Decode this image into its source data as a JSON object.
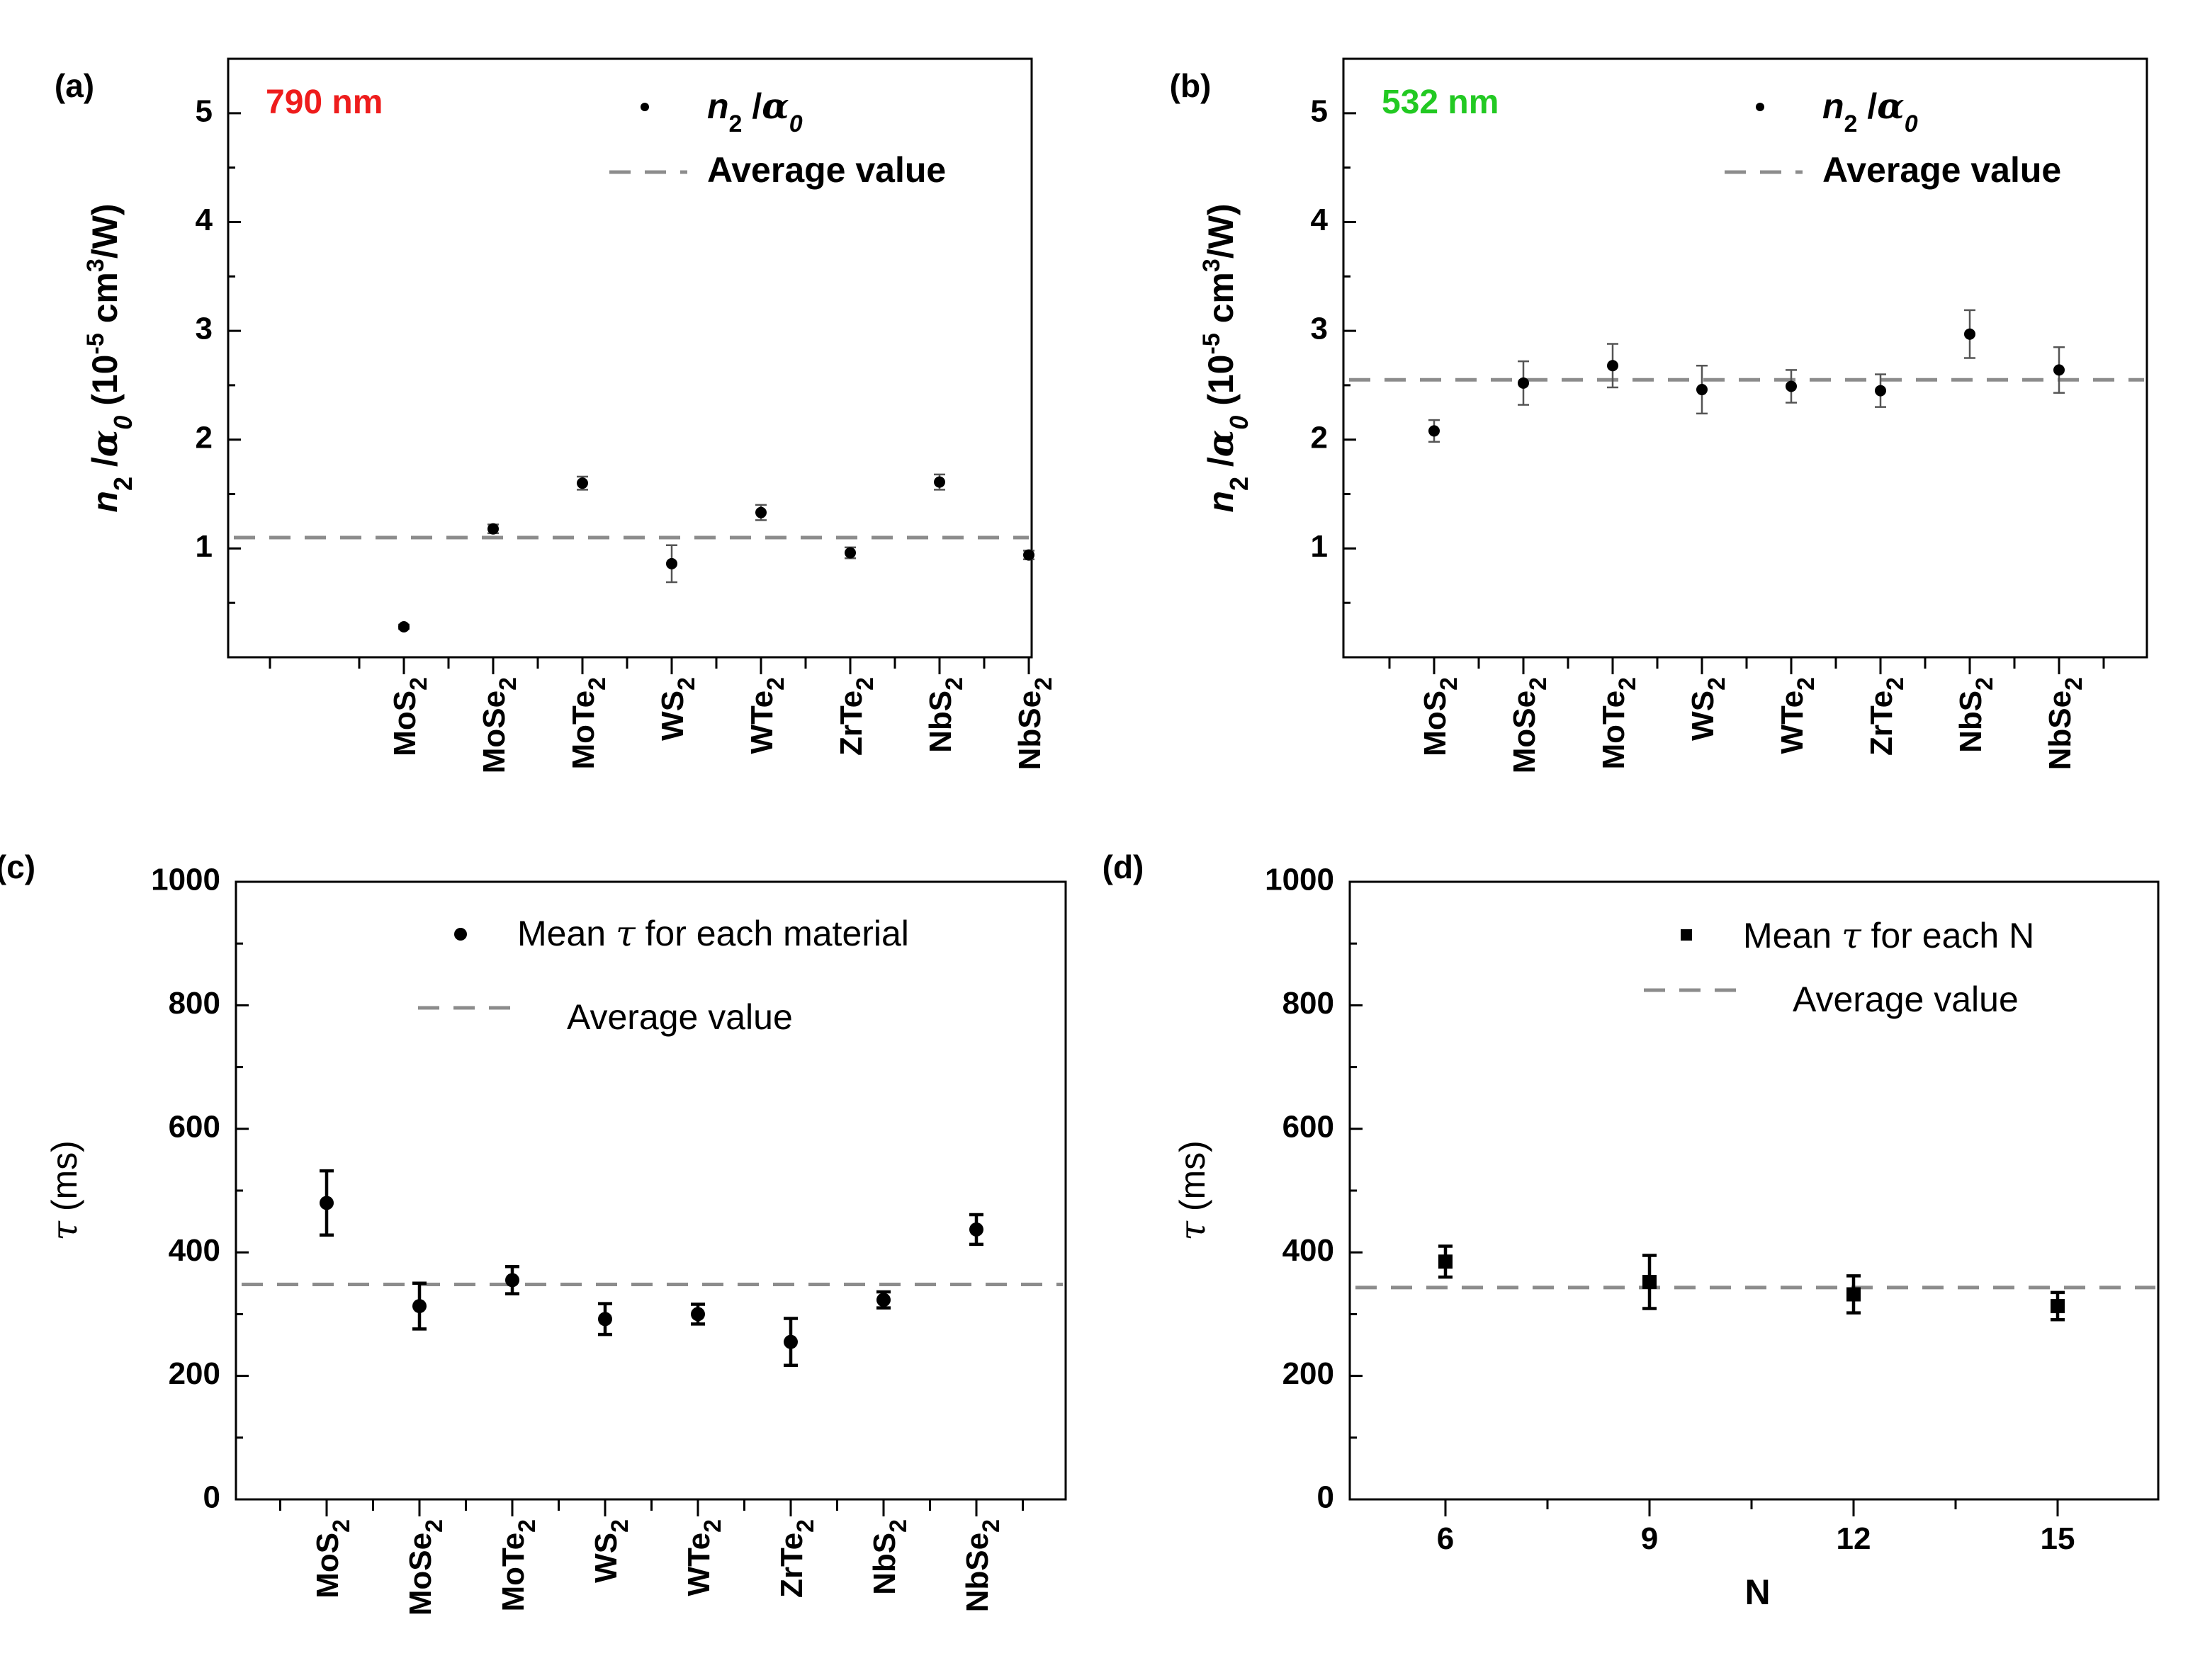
{
  "chart_data": [
    {
      "panel": "(a)",
      "type": "scatter",
      "annotation": "790 nm",
      "annotation_color": "#ee1c1c",
      "ylabel": "n2/α0 (10^-5 cm^3/W)",
      "xlabel": "",
      "ylim": [
        0,
        5.5
      ],
      "yticks": [
        1,
        2,
        3,
        4,
        5
      ],
      "categories": [
        "MoS2",
        "MoSe2",
        "MoTe2",
        "WS2",
        "WTe2",
        "ZrTe2",
        "NbS2",
        "NbSe2"
      ],
      "values": [
        0.28,
        1.18,
        1.6,
        0.86,
        1.33,
        0.96,
        1.61,
        0.94
      ],
      "errors": [
        0.02,
        0.04,
        0.06,
        0.17,
        0.07,
        0.05,
        0.07,
        0.04
      ],
      "average": 1.1,
      "legend": [
        "n2/α0",
        "Average value"
      ],
      "legend_position": "top-right"
    },
    {
      "panel": "(b)",
      "type": "scatter",
      "annotation": "532 nm",
      "annotation_color": "#22c922",
      "ylabel": "n2/α0 (10^-5 cm^3/W)",
      "xlabel": "",
      "ylim": [
        0,
        5.5
      ],
      "yticks": [
        1,
        2,
        3,
        4,
        5
      ],
      "categories": [
        "MoS2",
        "MoSe2",
        "MoTe2",
        "WS2",
        "WTe2",
        "ZrTe2",
        "NbS2",
        "NbSe2"
      ],
      "values": [
        2.08,
        2.52,
        2.68,
        2.46,
        2.49,
        2.45,
        2.97,
        2.64
      ],
      "errors": [
        0.1,
        0.2,
        0.2,
        0.22,
        0.15,
        0.15,
        0.22,
        0.21
      ],
      "average": 2.55,
      "legend": [
        "n2/α0",
        "Average value"
      ],
      "legend_position": "top-right"
    },
    {
      "panel": "(c)",
      "type": "scatter",
      "ylabel": "τ (ms)",
      "xlabel": "",
      "ylim": [
        0,
        1000
      ],
      "yticks": [
        0,
        200,
        400,
        600,
        800,
        1000
      ],
      "categories": [
        "MoS2",
        "MoSe2",
        "MoTe2",
        "WS2",
        "WTe2",
        "ZrTe2",
        "NbS2",
        "NbSe2"
      ],
      "values": [
        480,
        313,
        355,
        292,
        300,
        255,
        323,
        437
      ],
      "errors": [
        52,
        37,
        22,
        25,
        16,
        38,
        13,
        24
      ],
      "average": 348,
      "legend": [
        "Mean τ for each material",
        "Average value"
      ],
      "legend_position": "top-right"
    },
    {
      "panel": "(d)",
      "type": "scatter",
      "ylabel": "τ (ms)",
      "xlabel": "N",
      "ylim": [
        0,
        1000
      ],
      "yticks": [
        0,
        200,
        400,
        600,
        800,
        1000
      ],
      "xticks": [
        "6",
        "9",
        "12",
        "15"
      ],
      "x": [
        6,
        9,
        12,
        15
      ],
      "values": [
        385,
        352,
        332,
        313
      ],
      "errors": [
        25,
        43,
        30,
        22
      ],
      "average": 343,
      "legend": [
        "Mean τ for each N",
        "Average value"
      ],
      "legend_position": "top-right"
    }
  ]
}
